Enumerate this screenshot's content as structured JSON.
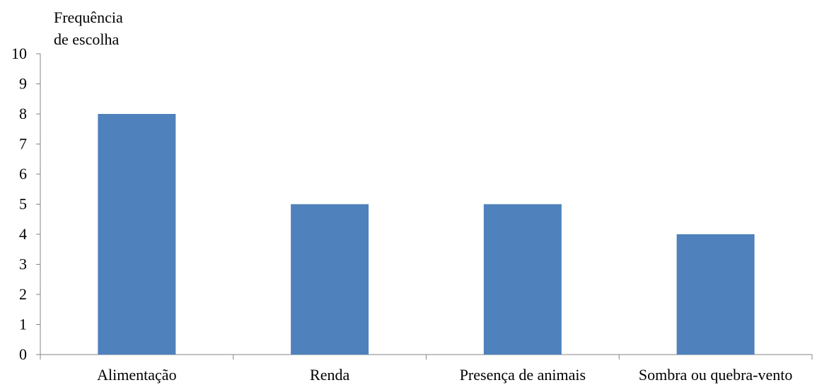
{
  "chart_data": {
    "type": "bar",
    "title": "",
    "ylabel": "Frequência de escolha",
    "ylabel_lines": [
      "Frequência",
      "de escolha"
    ],
    "xlabel": "",
    "categories": [
      "Alimentação",
      "Renda",
      "Presença de animais",
      "Sombra ou quebra-vento"
    ],
    "values": [
      8,
      5,
      5,
      4
    ],
    "ylim": [
      0,
      10
    ],
    "yticks": [
      "0",
      "1",
      "2",
      "3",
      "4",
      "5",
      "6",
      "7",
      "8",
      "9",
      "10"
    ],
    "grid": false,
    "legend": "none",
    "bar_color": "#4f81bd"
  }
}
